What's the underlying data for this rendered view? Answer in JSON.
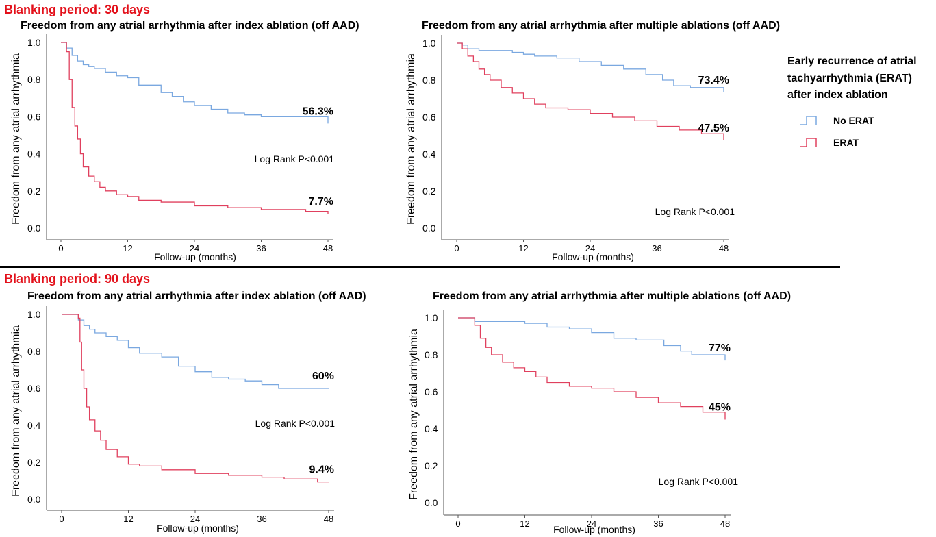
{
  "sections": [
    {
      "title": "Blanking period: 30 days"
    },
    {
      "title": "Blanking period: 90 days"
    }
  ],
  "legend": {
    "title": "Early recurrence of atrial tachyarrhythmia (ERAT) after index ablation",
    "title_lines": [
      "Early recurrence of atrial",
      "tachyarrhythmia (ERAT)",
      "after index ablation"
    ],
    "items": [
      {
        "label": "No ERAT",
        "color": "#7aa8e0"
      },
      {
        "label": "ERAT",
        "color": "#e0405e"
      }
    ]
  },
  "chart_data": [
    {
      "type": "line",
      "title": "Freedom from any atrial arrhythmia after index ablation (off AAD)",
      "xlabel": "Follow-up (months)",
      "ylabel": "Freedom from any atrial arrhythmia",
      "xticks": [
        "0",
        "12",
        "24",
        "36",
        "48"
      ],
      "yticks": [
        "0.0",
        "0.2",
        "0.4",
        "0.6",
        "0.8",
        "1.0"
      ],
      "xlim": [
        0,
        48
      ],
      "ylim": [
        0,
        1
      ],
      "annotation": "Log Rank P<0.001",
      "series": [
        {
          "name": "No ERAT",
          "color": "#7aa8e0",
          "end_label": "56.3%",
          "x": [
            0,
            1,
            2,
            3,
            4,
            5,
            6,
            8,
            10,
            12,
            14,
            18,
            20,
            22,
            24,
            27,
            30,
            33,
            36,
            48
          ],
          "y": [
            1.0,
            0.97,
            0.93,
            0.9,
            0.88,
            0.87,
            0.86,
            0.84,
            0.82,
            0.81,
            0.77,
            0.73,
            0.71,
            0.68,
            0.66,
            0.64,
            0.62,
            0.61,
            0.6,
            0.563
          ]
        },
        {
          "name": "ERAT",
          "color": "#e0405e",
          "end_label": "7.7%",
          "x": [
            0,
            1,
            1.5,
            2,
            2.5,
            3,
            3.5,
            4,
            5,
            6,
            7,
            8,
            10,
            12,
            14,
            18,
            24,
            30,
            36,
            44,
            48
          ],
          "y": [
            1.0,
            0.95,
            0.8,
            0.65,
            0.55,
            0.48,
            0.4,
            0.33,
            0.28,
            0.25,
            0.22,
            0.2,
            0.18,
            0.17,
            0.15,
            0.14,
            0.12,
            0.11,
            0.1,
            0.09,
            0.077
          ]
        }
      ]
    },
    {
      "type": "line",
      "title": "Freedom from any atrial arrhythmia after multiple ablations (off AAD)",
      "xlabel": "Follow-up (months)",
      "ylabel": "Freedom from any atrial arrhythmia",
      "xticks": [
        "0",
        "12",
        "24",
        "36",
        "48"
      ],
      "yticks": [
        "0.0",
        "0.2",
        "0.4",
        "0.6",
        "0.8",
        "1.0"
      ],
      "xlim": [
        0,
        48
      ],
      "ylim": [
        0,
        1
      ],
      "annotation": "Log Rank P<0.001",
      "series": [
        {
          "name": "No ERAT",
          "color": "#7aa8e0",
          "end_label": "73.4%",
          "x": [
            0,
            1,
            2,
            4,
            6,
            10,
            12,
            14,
            18,
            22,
            26,
            30,
            34,
            37,
            39,
            42,
            48
          ],
          "y": [
            1.0,
            0.99,
            0.97,
            0.96,
            0.96,
            0.95,
            0.94,
            0.93,
            0.92,
            0.9,
            0.88,
            0.86,
            0.83,
            0.8,
            0.77,
            0.76,
            0.734
          ]
        },
        {
          "name": "ERAT",
          "color": "#e0405e",
          "end_label": "47.5%",
          "x": [
            0,
            1,
            2,
            3,
            4,
            5,
            6,
            8,
            10,
            12,
            14,
            16,
            20,
            24,
            28,
            32,
            36,
            40,
            44,
            48
          ],
          "y": [
            1.0,
            0.97,
            0.93,
            0.9,
            0.86,
            0.83,
            0.8,
            0.76,
            0.73,
            0.7,
            0.67,
            0.65,
            0.64,
            0.62,
            0.6,
            0.58,
            0.55,
            0.53,
            0.51,
            0.475
          ]
        }
      ]
    },
    {
      "type": "line",
      "title": "Freedom from any atrial arrhythmia after index ablation (off AAD)",
      "xlabel": "Follow-up (months)",
      "ylabel": "Freedom from any atrial arrhythmia",
      "xticks": [
        "0",
        "12",
        "24",
        "36",
        "48"
      ],
      "yticks": [
        "0.0",
        "0.2",
        "0.4",
        "0.6",
        "0.8",
        "1.0"
      ],
      "xlim": [
        0,
        48
      ],
      "ylim": [
        0,
        1
      ],
      "annotation": "Log Rank P<0.001",
      "series": [
        {
          "name": "No ERAT",
          "color": "#7aa8e0",
          "end_label": "60%",
          "x": [
            0,
            3,
            4,
            5,
            6,
            8,
            10,
            12,
            14,
            18,
            21,
            24,
            27,
            30,
            33,
            36,
            39,
            48
          ],
          "y": [
            1.0,
            0.97,
            0.94,
            0.92,
            0.9,
            0.88,
            0.86,
            0.82,
            0.79,
            0.77,
            0.72,
            0.69,
            0.66,
            0.65,
            0.64,
            0.62,
            0.6,
            0.6
          ]
        },
        {
          "name": "ERAT",
          "color": "#e0405e",
          "end_label": "9.4%",
          "x": [
            0,
            3,
            3.3,
            3.6,
            4,
            4.5,
            5,
            6,
            7,
            8,
            10,
            12,
            14,
            18,
            24,
            30,
            36,
            40,
            46,
            48
          ],
          "y": [
            1.0,
            0.98,
            0.85,
            0.7,
            0.6,
            0.5,
            0.43,
            0.37,
            0.32,
            0.27,
            0.23,
            0.19,
            0.18,
            0.16,
            0.14,
            0.13,
            0.12,
            0.11,
            0.094,
            0.094
          ]
        }
      ]
    },
    {
      "type": "line",
      "title": "Freedom from any atrial arrhythmia after multiple ablations (off AAD)",
      "xlabel": "Follow-up (months)",
      "ylabel": "Freedom from any atrial arrhythmia",
      "xticks": [
        "0",
        "12",
        "24",
        "36",
        "48"
      ],
      "yticks": [
        "0.0",
        "0.2",
        "0.4",
        "0.6",
        "0.8",
        "1.0"
      ],
      "xlim": [
        0,
        48
      ],
      "ylim": [
        0,
        1
      ],
      "annotation": "Log Rank P<0.001",
      "series": [
        {
          "name": "No ERAT",
          "color": "#7aa8e0",
          "end_label": "77%",
          "x": [
            0,
            3,
            6,
            10,
            12,
            16,
            20,
            24,
            28,
            32,
            37,
            40,
            42,
            48
          ],
          "y": [
            1.0,
            0.98,
            0.98,
            0.98,
            0.97,
            0.95,
            0.94,
            0.92,
            0.89,
            0.88,
            0.85,
            0.82,
            0.8,
            0.77
          ]
        },
        {
          "name": "ERAT",
          "color": "#e0405e",
          "end_label": "45%",
          "x": [
            0,
            3,
            4,
            5,
            6,
            8,
            10,
            12,
            14,
            16,
            20,
            24,
            28,
            32,
            36,
            40,
            44,
            48
          ],
          "y": [
            1.0,
            0.96,
            0.89,
            0.84,
            0.8,
            0.76,
            0.73,
            0.71,
            0.68,
            0.65,
            0.63,
            0.62,
            0.6,
            0.57,
            0.54,
            0.52,
            0.49,
            0.45
          ]
        }
      ]
    }
  ]
}
